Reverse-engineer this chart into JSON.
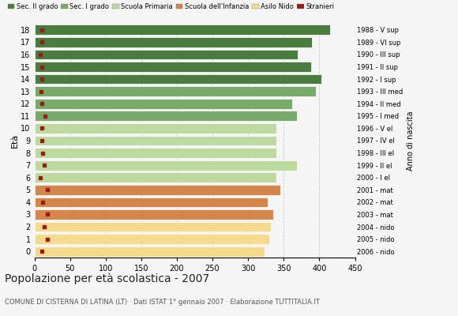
{
  "ages": [
    18,
    17,
    16,
    15,
    14,
    13,
    12,
    11,
    10,
    9,
    8,
    7,
    6,
    5,
    4,
    3,
    2,
    1,
    0
  ],
  "years": [
    "1988 - V sup",
    "1989 - VI sup",
    "1990 - III sup",
    "1991 - II sup",
    "1992 - I sup",
    "1993 - III med",
    "1994 - II med",
    "1995 - I med",
    "1996 - V el",
    "1997 - IV el",
    "1998 - III el",
    "1999 - II el",
    "2000 - I el",
    "2001 - mat",
    "2002 - mat",
    "2003 - mat",
    "2004 - nido",
    "2005 - nido",
    "2006 - nido"
  ],
  "values": [
    415,
    390,
    370,
    388,
    403,
    395,
    362,
    368,
    340,
    340,
    340,
    368,
    340,
    345,
    328,
    335,
    332,
    330,
    323
  ],
  "stranieri": [
    10,
    11,
    8,
    10,
    11,
    9,
    10,
    15,
    10,
    10,
    12,
    14,
    8,
    18,
    12,
    18,
    14,
    18,
    10
  ],
  "categories": [
    "Sec. II grado",
    "Sec. I grado",
    "Scuola Primaria",
    "Scuola dell'Infanzia",
    "Asilo Nido"
  ],
  "age_to_category": {
    "18": "Sec. II grado",
    "17": "Sec. II grado",
    "16": "Sec. II grado",
    "15": "Sec. II grado",
    "14": "Sec. II grado",
    "13": "Sec. I grado",
    "12": "Sec. I grado",
    "11": "Sec. I grado",
    "10": "Scuola Primaria",
    "9": "Scuola Primaria",
    "8": "Scuola Primaria",
    "7": "Scuola Primaria",
    "6": "Scuola Primaria",
    "5": "Scuola dell'Infanzia",
    "4": "Scuola dell'Infanzia",
    "3": "Scuola dell'Infanzia",
    "2": "Asilo Nido",
    "1": "Asilo Nido",
    "0": "Asilo Nido"
  },
  "colors": {
    "Sec. II grado": "#4a7c3f",
    "Sec. I grado": "#7aaa6a",
    "Scuola Primaria": "#bdd9a0",
    "Scuola dell'Infanzia": "#d4854a",
    "Asilo Nido": "#f5d98c"
  },
  "stranieri_color": "#9b1b1b",
  "title": "Popolazione per età scolastica - 2007",
  "subtitle": "COMUNE DI CISTERNA DI LATINA (LT) · Dati ISTAT 1° gennaio 2007 · Elaborazione TUTTITALIA.IT",
  "ylabel": "Età",
  "xlabel_right": "Anno di nascita",
  "xlim": [
    0,
    450
  ],
  "xticks": [
    0,
    50,
    100,
    150,
    200,
    250,
    300,
    350,
    400,
    450
  ],
  "background_color": "#f5f5f5",
  "grid_color": "#cccccc"
}
